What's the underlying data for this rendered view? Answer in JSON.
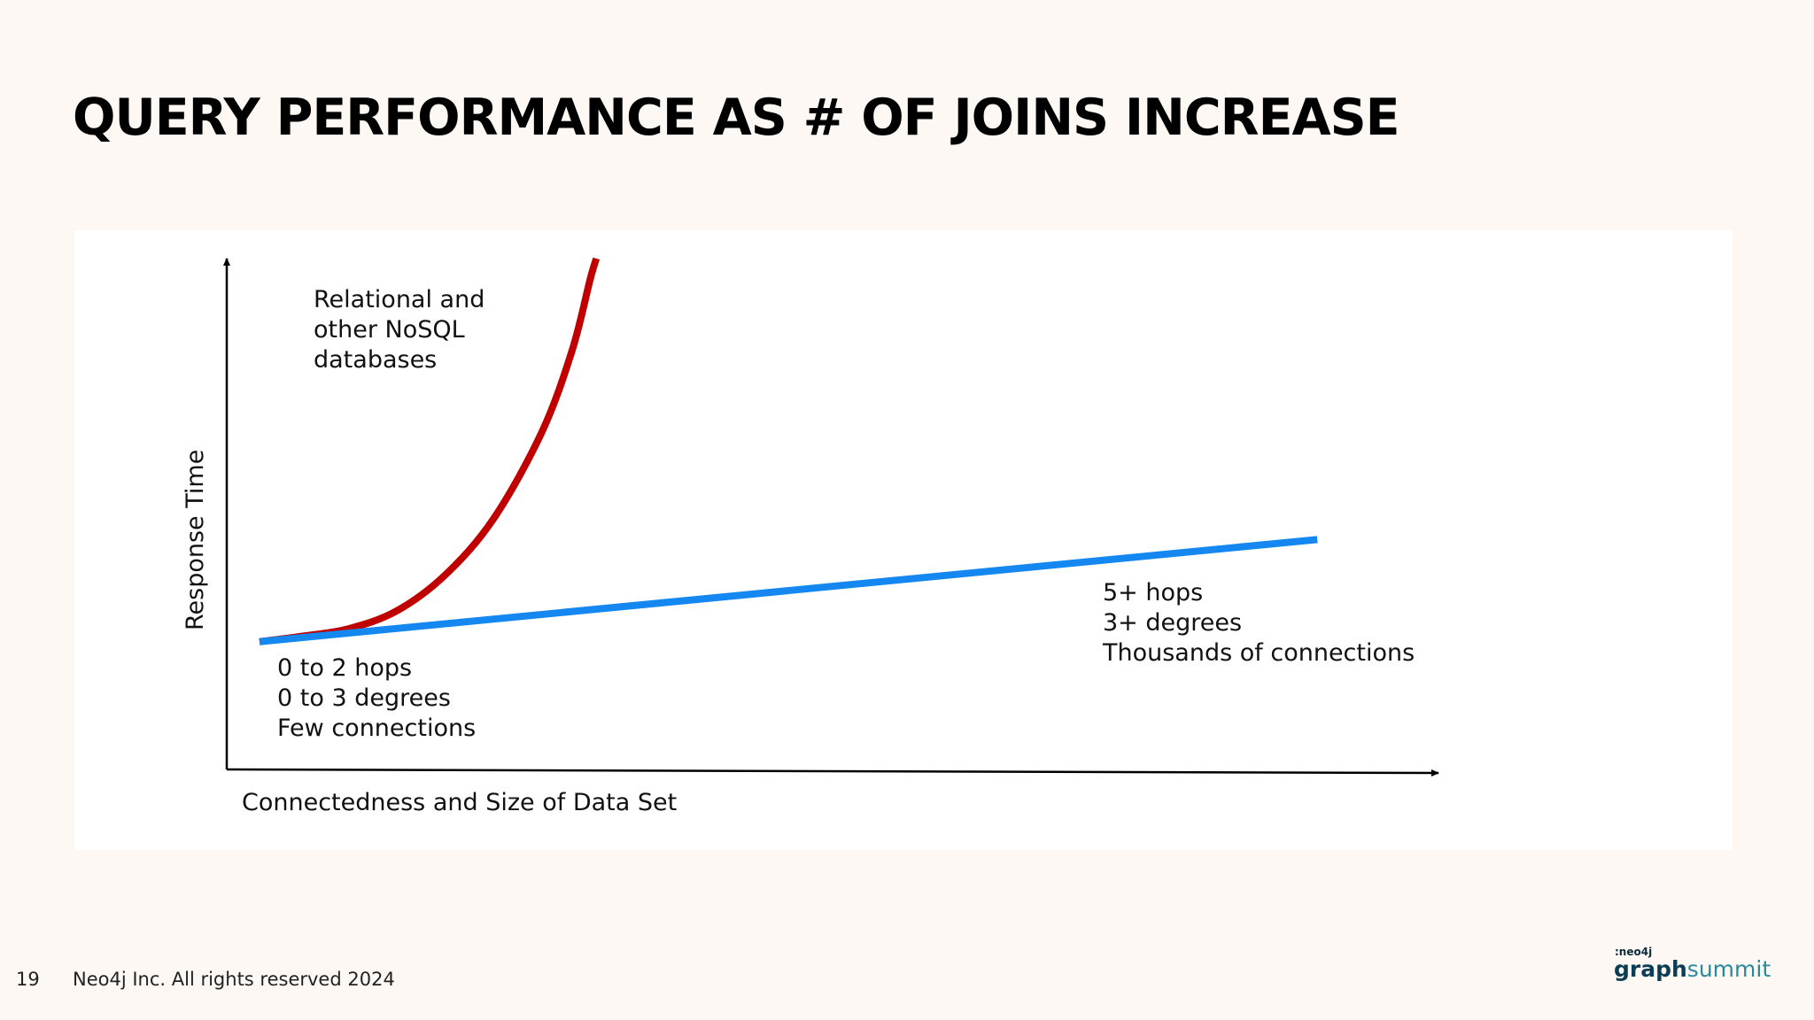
{
  "slide": {
    "title": "QUERY PERFORMANCE AS # OF JOINS INCREASE",
    "page_number": "19",
    "copyright": "Neo4j Inc. All rights reserved 2024",
    "logo_small": ":neo4j",
    "logo_graph": "graph",
    "logo_summit": "summit"
  },
  "chart_data": {
    "type": "line",
    "xlabel": "Connectedness and Size of Data Set",
    "ylabel": "Response Time",
    "xlim": [
      0,
      10
    ],
    "ylim": [
      0,
      10
    ],
    "grid": false,
    "series": [
      {
        "name": "",
        "color": "#c00000",
        "shape": "exponential",
        "x": [
          0.27,
          0.6,
          1.0,
          1.4,
          1.8,
          2.2,
          2.6,
          2.85,
          3.0,
          3.05
        ],
        "y": [
          2.5,
          2.6,
          2.75,
          3.1,
          3.8,
          4.9,
          6.6,
          8.2,
          9.6,
          10.0
        ]
      },
      {
        "name": "",
        "color": "#1488f0",
        "shape": "linear",
        "x": [
          0.27,
          9.0
        ],
        "y": [
          2.5,
          4.5
        ]
      }
    ],
    "annotations": [
      {
        "id": "relational",
        "lines": [
          "Relational and",
          "other NoSQL",
          "databases"
        ]
      },
      {
        "id": "low",
        "lines": [
          "0 to 2 hops",
          "0 to 3 degrees",
          "Few connections"
        ]
      },
      {
        "id": "high",
        "lines": [
          "5+ hops",
          "3+ degrees",
          "Thousands of connections"
        ]
      }
    ]
  }
}
